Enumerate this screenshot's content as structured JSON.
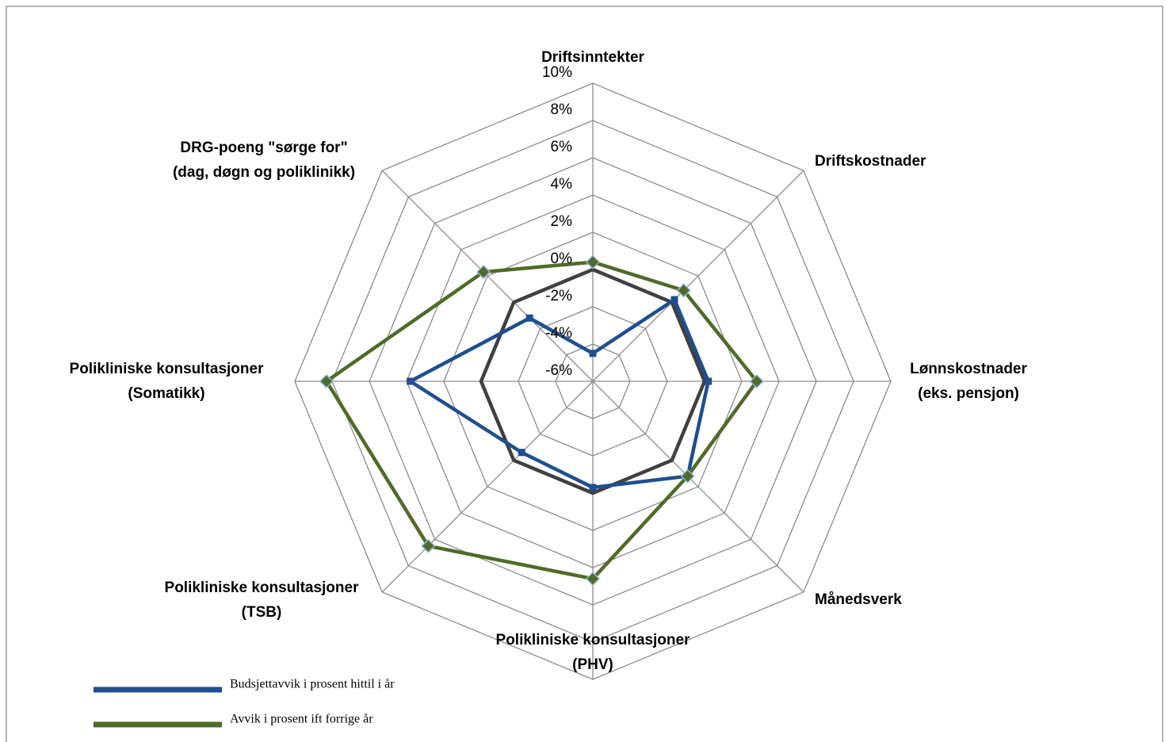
{
  "chart_data": {
    "type": "radar",
    "categories": [
      "Driftsinntekter",
      "Driftskostnader",
      "Lønnskostnader\n(eks. pensjon)",
      "Månedsverk",
      "Polikliniske konsultasjoner\n(PHV)",
      "Polikliniske konsultasjoner\n(TSB)",
      "Polikliniske konsultasjoner\n(Somatikk)",
      "DRG-poeng \"sørge for\"\n(dag, døgn og poliklinikk)"
    ],
    "series": [
      {
        "name": "Budsjettavvik i prosent hittil i år",
        "color": "#1f4e91",
        "marker": "square",
        "values": [
          -4.5,
          0.2,
          0.2,
          1.2,
          -0.3,
          -0.6,
          3.8,
          -1.2
        ]
      },
      {
        "name": "Avvik i prosent ift forrige år",
        "color": "#4f6b28",
        "marker": "diamond",
        "values": [
          0.4,
          0.9,
          2.8,
          1.2,
          4.6,
          6.5,
          8.3,
          2.3
        ]
      },
      {
        "color": "#404040",
        "values": [
          0,
          0,
          0,
          0,
          0,
          0,
          0,
          0
        ]
      }
    ],
    "ylim": [
      -6,
      10
    ],
    "yticks": [
      {
        "value": -6,
        "label": "-6%"
      },
      {
        "value": -4,
        "label": "-4%"
      },
      {
        "value": -2,
        "label": "-2%"
      },
      {
        "value": 0,
        "label": "0%"
      },
      {
        "value": 2,
        "label": "2%"
      },
      {
        "value": 4,
        "label": "4%"
      },
      {
        "value": 6,
        "label": "6%"
      },
      {
        "value": 8,
        "label": "8%"
      },
      {
        "value": 10,
        "label": "10%"
      }
    ],
    "grid": true
  }
}
